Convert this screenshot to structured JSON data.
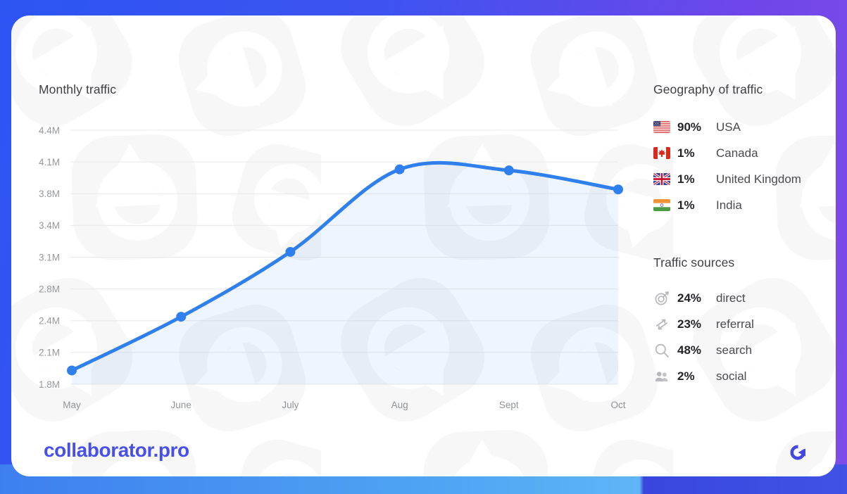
{
  "header": {
    "title": "Monthly traffic"
  },
  "chart_data": {
    "type": "line",
    "title": "Monthly traffic",
    "categories": [
      "May",
      "June",
      "July",
      "Aug",
      "Sept",
      "Oct"
    ],
    "series": [
      {
        "name": "Monthly traffic (millions of visits)",
        "values": [
          1.93,
          2.45,
          3.15,
          4.03,
          4.02,
          3.84
        ]
      }
    ],
    "y_tick_labels": [
      "4.4M",
      "4.1M",
      "3.8M",
      "3.4M",
      "3.1M",
      "2.8M",
      "2.4M",
      "2.1M",
      "1.8M"
    ],
    "y_tick_values": [
      4.4,
      4.1,
      3.8,
      3.4,
      3.1,
      2.8,
      2.4,
      2.1,
      1.8
    ],
    "ylim": [
      1.8,
      4.4
    ],
    "grid": true,
    "legend": false,
    "line_color": "#2F80ED",
    "point_color": "#2F80ED",
    "fill_color": "rgba(47,128,237,0.08)",
    "gridline_color": "#E7E8EA",
    "tick_color": "#96989D"
  },
  "geography": {
    "heading": "Geography of traffic",
    "items": [
      {
        "flag": "usa-flag-icon",
        "percent": "90%",
        "country": "USA"
      },
      {
        "flag": "canada-flag-icon",
        "percent": "1%",
        "country": "Canada"
      },
      {
        "flag": "uk-flag-icon",
        "percent": "1%",
        "country": "United Kingdom"
      },
      {
        "flag": "india-flag-icon",
        "percent": "1%",
        "country": "India"
      }
    ]
  },
  "sources": {
    "heading": "Traffic sources",
    "items": [
      {
        "icon": "target-icon",
        "percent": "24%",
        "label": "direct"
      },
      {
        "icon": "swap-arrows-icon",
        "percent": "23%",
        "label": "referral"
      },
      {
        "icon": "search-icon",
        "percent": "48%",
        "label": "search"
      },
      {
        "icon": "people-icon",
        "percent": "2%",
        "label": "social"
      }
    ]
  },
  "footer": {
    "brand": "collaborator.pro"
  },
  "colors": {
    "accent_blue": "#2F80ED",
    "brand_indigo": "#4750E8",
    "frame_gradient_left": "#2D55F3",
    "frame_gradient_right": "#7E4CE9",
    "frame_bottom_light_blue": "#5FB5F6"
  }
}
